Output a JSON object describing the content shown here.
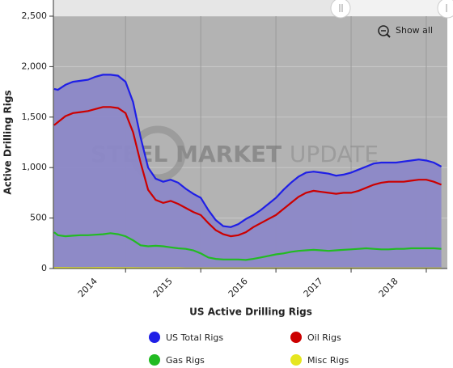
{
  "chart_data": {
    "type": "line",
    "title": "US Active Drilling Rigs",
    "ylabel": "Active Drilling Rigs",
    "watermark_bold": "STEEL MARKET",
    "watermark_light": "UPDATE",
    "button": "Show all",
    "xlim": [
      2014.04,
      2019.28
    ],
    "xticks": [
      {
        "value": 2014.5,
        "label": "2014"
      },
      {
        "value": 2015.5,
        "label": "2015"
      },
      {
        "value": 2016.5,
        "label": "2016"
      },
      {
        "value": 2017.5,
        "label": "2017"
      },
      {
        "value": 2018.5,
        "label": "2018"
      }
    ],
    "xgrid": [
      2015,
      2016,
      2017,
      2018,
      2019
    ],
    "ylim": [
      0,
      2500
    ],
    "yticks": [
      0,
      500,
      {
        "value": 1000,
        "label": "1,000"
      },
      {
        "value": 1500,
        "label": "1,500"
      },
      {
        "value": 2000,
        "label": "2,000"
      },
      {
        "value": 2500,
        "label": "2,500"
      }
    ],
    "grid": true,
    "x": [
      2014.05,
      2014.1,
      2014.2,
      2014.3,
      2014.4,
      2014.5,
      2014.6,
      2014.7,
      2014.8,
      2014.9,
      2015.0,
      2015.1,
      2015.2,
      2015.3,
      2015.4,
      2015.5,
      2015.6,
      2015.7,
      2015.8,
      2015.9,
      2016.0,
      2016.1,
      2016.2,
      2016.3,
      2016.4,
      2016.5,
      2016.6,
      2016.7,
      2016.8,
      2016.9,
      2017.0,
      2017.1,
      2017.2,
      2017.3,
      2017.4,
      2017.5,
      2017.6,
      2017.7,
      2017.8,
      2017.9,
      2018.0,
      2018.1,
      2018.2,
      2018.3,
      2018.4,
      2018.5,
      2018.6,
      2018.7,
      2018.8,
      2018.9,
      2019.0,
      2019.1,
      2019.2
    ],
    "series": [
      {
        "name": "US Total Rigs",
        "color": "#1f1fe6",
        "fill": "#8c88c8",
        "values": [
          1780,
          1770,
          1820,
          1850,
          1860,
          1870,
          1900,
          1920,
          1920,
          1910,
          1850,
          1650,
          1300,
          1000,
          890,
          860,
          880,
          850,
          790,
          740,
          700,
          580,
          480,
          420,
          410,
          440,
          490,
          530,
          580,
          640,
          700,
          780,
          850,
          910,
          950,
          960,
          950,
          940,
          920,
          930,
          950,
          980,
          1010,
          1040,
          1050,
          1050,
          1050,
          1060,
          1070,
          1080,
          1070,
          1050,
          1010
        ]
      },
      {
        "name": "Oil Rigs",
        "color": "#cc0000",
        "values": [
          1420,
          1450,
          1510,
          1540,
          1550,
          1560,
          1580,
          1600,
          1600,
          1590,
          1540,
          1350,
          1050,
          780,
          680,
          650,
          670,
          640,
          600,
          560,
          530,
          450,
          380,
          340,
          320,
          330,
          360,
          410,
          450,
          490,
          530,
          590,
          650,
          710,
          750,
          770,
          760,
          750,
          740,
          750,
          750,
          770,
          800,
          830,
          850,
          860,
          860,
          860,
          870,
          880,
          880,
          860,
          830
        ]
      },
      {
        "name": "Gas Rigs",
        "color": "#22bb22",
        "values": [
          360,
          330,
          320,
          325,
          330,
          330,
          335,
          340,
          350,
          340,
          320,
          280,
          230,
          220,
          225,
          220,
          210,
          200,
          195,
          180,
          150,
          110,
          95,
          90,
          90,
          90,
          85,
          95,
          110,
          125,
          140,
          150,
          165,
          175,
          180,
          185,
          180,
          175,
          180,
          185,
          190,
          195,
          200,
          195,
          190,
          190,
          195,
          195,
          200,
          200,
          200,
          200,
          195
        ]
      },
      {
        "name": "Misc Rigs",
        "color": "#e6e620",
        "values": [
          5,
          5,
          5,
          4,
          4,
          4,
          5,
          5,
          5,
          4,
          4,
          4,
          3,
          3,
          3,
          3,
          3,
          3,
          2,
          2,
          2,
          2,
          2,
          1,
          1,
          1,
          1,
          1,
          1,
          1,
          1,
          1,
          1,
          1,
          1,
          1,
          1,
          1,
          1,
          1,
          1,
          1,
          1,
          1,
          1,
          1,
          1,
          1,
          1,
          1,
          1,
          1,
          1
        ]
      }
    ]
  }
}
